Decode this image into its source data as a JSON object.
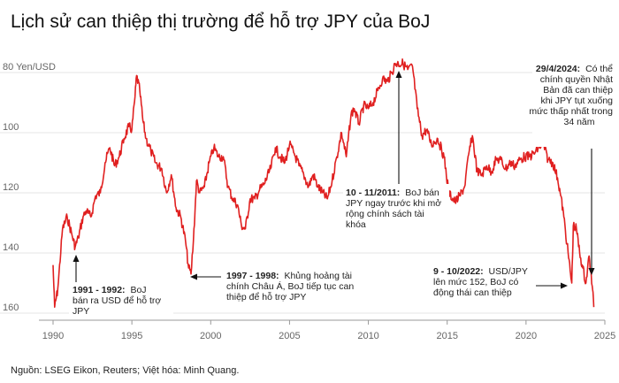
{
  "chart_data": {
    "type": "line",
    "title": "Lịch sử can thiệp thị trường để hỗ trợ JPY của BoJ",
    "ylabel": "Yen/USD",
    "y_inverted": true,
    "ylim": [
      160,
      76
    ],
    "xlim": [
      1989.7,
      2025.2
    ],
    "x_ticks": [
      1990,
      1995,
      2000,
      2005,
      2010,
      2015,
      2020,
      2025
    ],
    "x_tick_labels": [
      "1990",
      "1995",
      "2000",
      "2005",
      "2010",
      "2015",
      "2020",
      "2025"
    ],
    "y_ticks": [
      80,
      100,
      120,
      140,
      160
    ],
    "y_tick_labels": [
      "80",
      "100",
      "120",
      "140",
      "160"
    ],
    "grid": "horizontal",
    "line_color": "#e02020",
    "series": [
      {
        "name": "",
        "x": [
          1990.0,
          1990.1,
          1990.3,
          1990.6,
          1990.9,
          1991.2,
          1991.4,
          1991.6,
          1991.9,
          1992.1,
          1992.4,
          1992.7,
          1993.0,
          1993.3,
          1993.6,
          1993.9,
          1994.2,
          1994.5,
          1994.8,
          1995.0,
          1995.2,
          1995.3,
          1995.5,
          1995.7,
          1995.9,
          1996.2,
          1996.5,
          1996.9,
          1997.2,
          1997.5,
          1997.8,
          1998.1,
          1998.4,
          1998.6,
          1998.75,
          1998.9,
          1999.1,
          1999.3,
          1999.6,
          1999.9,
          2000.2,
          2000.5,
          2000.8,
          2001.1,
          2001.4,
          2001.7,
          2001.95,
          2002.2,
          2002.5,
          2002.8,
          2003.1,
          2003.4,
          2003.8,
          2004.1,
          2004.4,
          2004.7,
          2005.0,
          2005.3,
          2005.6,
          2005.9,
          2006.2,
          2006.5,
          2006.8,
          2007.1,
          2007.4,
          2007.7,
          2008.0,
          2008.3,
          2008.6,
          2008.9,
          2009.1,
          2009.4,
          2009.7,
          2010.0,
          2010.3,
          2010.6,
          2010.9,
          2011.2,
          2011.5,
          2011.7,
          2011.9,
          2012.2,
          2012.5,
          2012.8,
          2013.1,
          2013.4,
          2013.7,
          2014.0,
          2014.4,
          2014.8,
          2015.1,
          2015.5,
          2015.8,
          2016.1,
          2016.4,
          2016.6,
          2016.9,
          2017.2,
          2017.5,
          2017.8,
          2018.1,
          2018.4,
          2018.7,
          2019.0,
          2019.3,
          2019.6,
          2019.9,
          2020.2,
          2020.5,
          2020.8,
          2021.1,
          2021.4,
          2021.7,
          2022.0,
          2022.2,
          2022.4,
          2022.6,
          2022.8,
          2022.9,
          2023.0,
          2023.2,
          2023.4,
          2023.6,
          2023.8,
          2024.0,
          2024.2,
          2024.3
        ],
        "values": [
          144,
          158,
          152,
          132,
          128,
          134,
          138,
          135,
          128,
          126,
          128,
          121,
          120,
          110,
          105,
          111,
          108,
          102,
          98,
          99,
          88,
          81,
          86,
          96,
          102,
          106,
          110,
          112,
          120,
          114,
          125,
          128,
          136,
          145,
          147,
          136,
          116,
          120,
          118,
          110,
          105,
          108,
          108,
          118,
          122,
          124,
          131,
          132,
          122,
          122,
          119,
          117,
          112,
          105,
          108,
          110,
          104,
          107,
          111,
          114,
          118,
          114,
          118,
          120,
          122,
          116,
          108,
          100,
          108,
          94,
          92,
          97,
          91,
          92,
          90,
          86,
          82,
          83,
          80,
          77,
          77,
          77,
          79,
          78,
          92,
          101,
          99,
          104,
          102,
          108,
          120,
          123,
          121,
          118,
          106,
          101,
          113,
          114,
          111,
          113,
          109,
          109,
          112,
          110,
          111,
          109,
          108,
          108,
          107,
          105,
          104,
          109,
          110,
          115,
          121,
          128,
          137,
          146,
          150,
          131,
          132,
          140,
          145,
          150,
          141,
          151,
          158
        ]
      }
    ],
    "annotations": [
      {
        "date": "1991 - 1992:",
        "text": [
          "BoJ",
          "bán ra USD để hỗ trợ",
          "JPY"
        ]
      },
      {
        "date": "1997 - 1998:",
        "text": [
          "Khủng hoảng tài",
          "chính Châu Á, BoJ tiếp tục can",
          "thiệp để hỗ trợ JPY"
        ]
      },
      {
        "date": "10 - 11/2011:",
        "text": [
          "BoJ bán",
          "JPY ngay trước khi mở",
          "rộng chính sách tài",
          "khóa"
        ]
      },
      {
        "date": "29/4/2024:",
        "text": [
          "Có thể",
          "chính quyền Nhật",
          "Bản đã can thiệp",
          "khi JPY tụt xuống",
          "mức thấp nhất trong",
          "34 năm"
        ]
      },
      {
        "date": "9 - 10/2022:",
        "text": [
          "USD/JPY",
          "lên mức 152, BoJ có",
          "động thái can thiệp"
        ]
      }
    ],
    "source": "Nguồn: LSEG Eikon, Reuters; Việt hóa: Minh Quang."
  }
}
